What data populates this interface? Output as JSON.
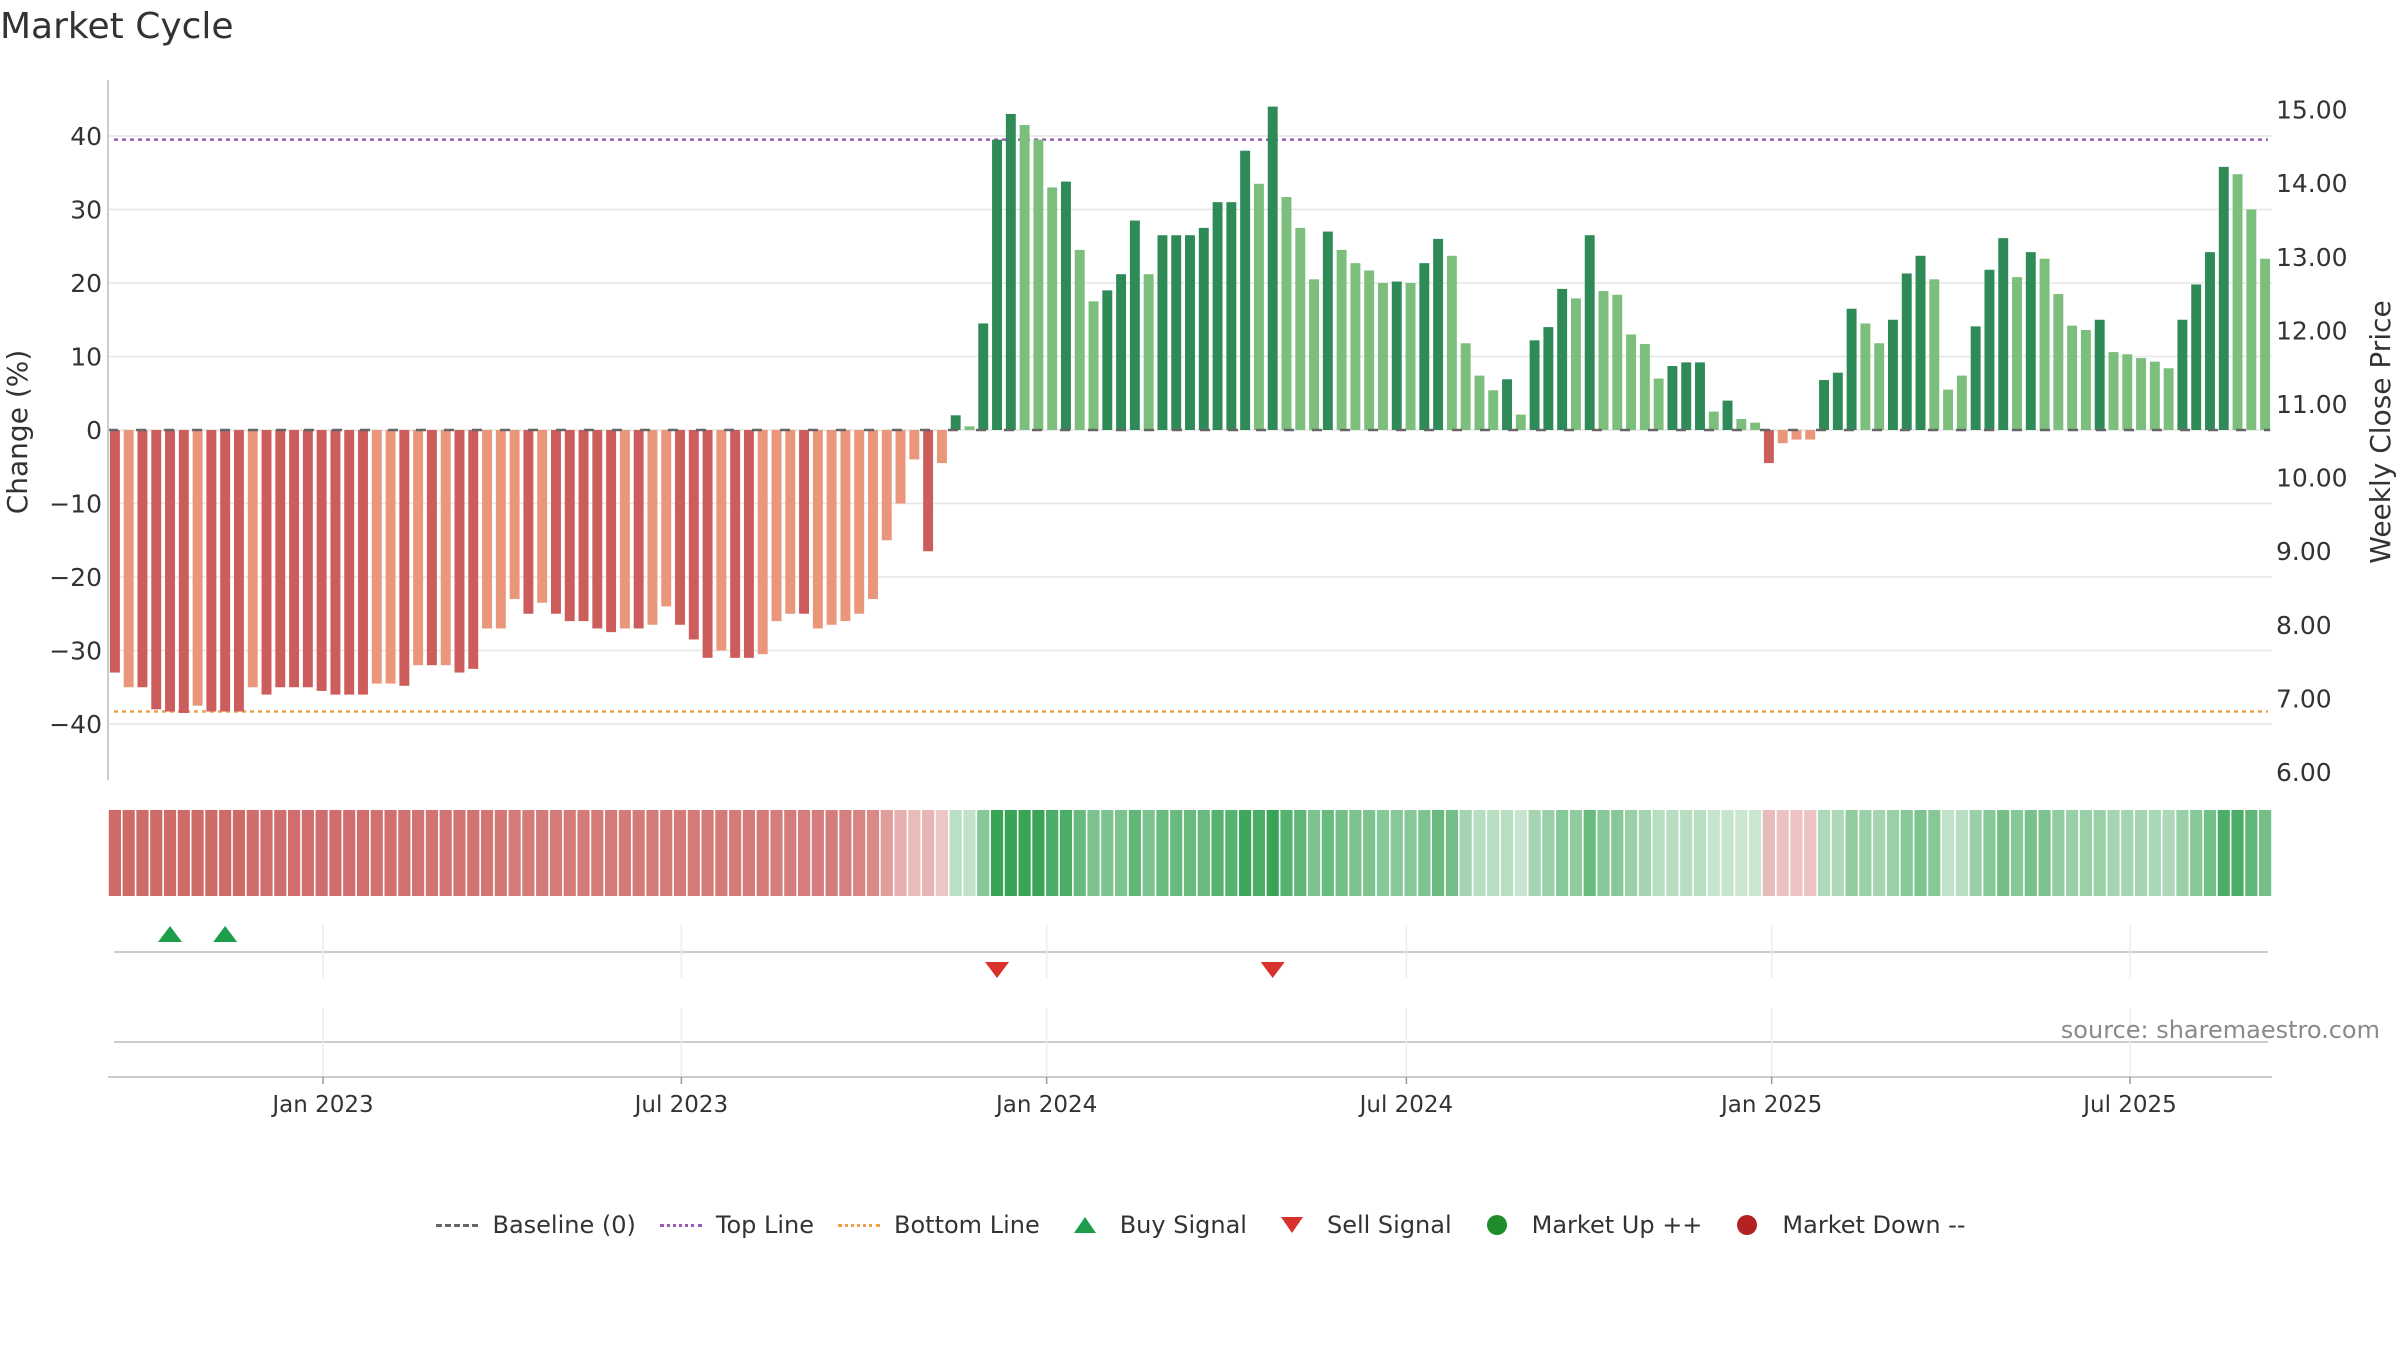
{
  "title": "Market Cycle",
  "source": "source: sharemaestro.com",
  "legend": {
    "baseline": "Baseline (0)",
    "top_line": "Top Line",
    "bottom_line": "Bottom Line",
    "buy": "Buy Signal",
    "sell": "Sell Signal",
    "up": "Market Up ++",
    "down": "Market Down --"
  },
  "colors": {
    "pos_dark": "#2e8b57",
    "pos_light": "#7cbf7c",
    "neg_dark": "#cd5c5c",
    "neg_light": "#e9967a",
    "top_line": "#9b59b6",
    "bottom_line": "#f0a04b",
    "buy": "#1e9e4a",
    "sell": "#d9312b",
    "up": "#1e8c2a",
    "down": "#b22222",
    "baseline": "#666666"
  },
  "chart_data": {
    "type": "bar",
    "title": "Market Cycle",
    "ylabel": "Change (%)",
    "y2label": "Weekly Close Price",
    "ylim": [
      -47,
      48
    ],
    "y2lim": [
      6.0,
      15.5
    ],
    "yticks": [
      "40",
      "30",
      "20",
      "10",
      "0",
      "−10",
      "−20",
      "−30",
      "−40"
    ],
    "yticks_values": [
      40,
      30,
      20,
      10,
      0,
      -10,
      -20,
      -30,
      -40
    ],
    "y2ticks": [
      "15.00",
      "14.00",
      "13.00",
      "12.00",
      "11.00",
      "10.00",
      "9.00",
      "8.00",
      "7.00",
      "6.00"
    ],
    "y2ticks_values": [
      15,
      14,
      13,
      12,
      11,
      10,
      9,
      8,
      7,
      6
    ],
    "xticks": [
      "Jan 2023",
      "Jul 2023",
      "Jan 2024",
      "Jul 2024",
      "Jan 2025",
      "Jul 2025"
    ],
    "xticks_index": [
      15.1,
      41.1,
      67.6,
      93.7,
      120.2,
      146.2
    ],
    "top_line": 39.5,
    "bottom_line": -38.3,
    "baseline": 0,
    "grid": true,
    "legend_position": "bottom-center",
    "values": [
      -33,
      -35,
      -35,
      -38,
      -38.3,
      -38.5,
      -37.5,
      -38.3,
      -38.3,
      -38.3,
      -35,
      -36,
      -35,
      -35,
      -35,
      -35.5,
      -36,
      -36,
      -36,
      -34.5,
      -34.5,
      -34.8,
      -32,
      -32,
      -32,
      -33,
      -32.5,
      -27,
      -27,
      -23,
      -25,
      -23.5,
      -25,
      -26,
      -26,
      -27,
      -27.5,
      -27,
      -27,
      -26.5,
      -24,
      -26.5,
      -28.5,
      -31,
      -30,
      -31,
      -31,
      -30.5,
      -26,
      -25,
      -25,
      -27,
      -26.5,
      -26,
      -25,
      -23,
      -15,
      -10,
      -4,
      -16.5,
      -4.5,
      2,
      0.5,
      14.5,
      39.5,
      43,
      41.5,
      39.5,
      33,
      33.8,
      24.5,
      17.5,
      19,
      21.2,
      28.5,
      21.2,
      26.5,
      26.5,
      26.5,
      27.5,
      31,
      31,
      38,
      33.5,
      44,
      31.7,
      27.5,
      20.5,
      27,
      24.5,
      22.7,
      21.7,
      20,
      20.2,
      20,
      22.7,
      26,
      23.7,
      11.8,
      7.4,
      5.4,
      6.9,
      2.1,
      12.2,
      14,
      19.2,
      17.9,
      26.5,
      18.9,
      18.4,
      13,
      11.7,
      7,
      8.7,
      9.2,
      9.2,
      2.5,
      4,
      1.5,
      1,
      -4.5,
      -1.8,
      -1.3,
      -1.3,
      6.8,
      7.8,
      16.5,
      14.5,
      11.8,
      15,
      21.3,
      23.7,
      20.5,
      5.5,
      7.4,
      14.1,
      21.8,
      26.1,
      20.8,
      24.2,
      23.3,
      18.5,
      14.2,
      13.6,
      15,
      10.6,
      10.3,
      9.8,
      9.3,
      8.4,
      15,
      19.8,
      24.2,
      35.8,
      34.8,
      30,
      23.3
    ],
    "shades": [
      "d",
      "l",
      "d",
      "d",
      "d",
      "d",
      "l",
      "d",
      "d",
      "d",
      "l",
      "d",
      "d",
      "d",
      "d",
      "d",
      "d",
      "d",
      "d",
      "l",
      "l",
      "d",
      "l",
      "d",
      "l",
      "d",
      "d",
      "l",
      "l",
      "l",
      "d",
      "l",
      "d",
      "d",
      "d",
      "d",
      "d",
      "l",
      "d",
      "l",
      "l",
      "d",
      "d",
      "d",
      "l",
      "d",
      "d",
      "l",
      "l",
      "l",
      "d",
      "l",
      "l",
      "l",
      "l",
      "l",
      "l",
      "l",
      "l",
      "d",
      "l",
      "d",
      "l",
      "d",
      "d",
      "d",
      "l",
      "l",
      "l",
      "d",
      "l",
      "l",
      "d",
      "d",
      "d",
      "l",
      "d",
      "d",
      "d",
      "d",
      "d",
      "d",
      "d",
      "l",
      "d",
      "l",
      "l",
      "l",
      "d",
      "l",
      "l",
      "l",
      "l",
      "d",
      "l",
      "d",
      "d",
      "l",
      "l",
      "l",
      "l",
      "d",
      "l",
      "d",
      "d",
      "d",
      "l",
      "d",
      "l",
      "l",
      "l",
      "l",
      "l",
      "d",
      "d",
      "d",
      "l",
      "d",
      "l",
      "l",
      "d",
      "l",
      "l",
      "l",
      "d",
      "d",
      "d",
      "l",
      "l",
      "d",
      "d",
      "d",
      "l",
      "l",
      "l",
      "d",
      "d",
      "d",
      "l",
      "d",
      "l",
      "l",
      "l",
      "l",
      "d",
      "l",
      "l",
      "l",
      "l",
      "l",
      "d",
      "d",
      "d",
      "d",
      "l",
      "l"
    ],
    "strength": [
      0.95,
      0.95,
      0.95,
      0.95,
      0.95,
      0.95,
      0.95,
      0.95,
      0.95,
      0.95,
      0.93,
      0.92,
      0.92,
      0.92,
      0.92,
      0.92,
      0.92,
      0.92,
      0.92,
      0.9,
      0.9,
      0.9,
      0.88,
      0.88,
      0.88,
      0.88,
      0.88,
      0.86,
      0.85,
      0.82,
      0.82,
      0.82,
      0.82,
      0.82,
      0.82,
      0.82,
      0.82,
      0.82,
      0.82,
      0.82,
      0.82,
      0.82,
      0.82,
      0.82,
      0.82,
      0.82,
      0.82,
      0.82,
      0.8,
      0.8,
      0.8,
      0.8,
      0.8,
      0.78,
      0.75,
      0.7,
      0.55,
      0.4,
      0.3,
      0.35,
      0.22,
      0.28,
      0.25,
      0.55,
      0.95,
      0.95,
      0.95,
      0.95,
      0.85,
      0.85,
      0.7,
      0.6,
      0.6,
      0.6,
      0.75,
      0.6,
      0.7,
      0.7,
      0.7,
      0.7,
      0.8,
      0.8,
      0.92,
      0.85,
      0.95,
      0.8,
      0.75,
      0.6,
      0.7,
      0.65,
      0.6,
      0.6,
      0.55,
      0.55,
      0.55,
      0.6,
      0.7,
      0.65,
      0.4,
      0.3,
      0.3,
      0.3,
      0.22,
      0.4,
      0.45,
      0.55,
      0.5,
      0.7,
      0.55,
      0.55,
      0.45,
      0.4,
      0.3,
      0.3,
      0.3,
      0.3,
      0.22,
      0.22,
      0.2,
      0.2,
      0.3,
      0.25,
      0.25,
      0.25,
      0.35,
      0.35,
      0.5,
      0.45,
      0.4,
      0.45,
      0.55,
      0.6,
      0.55,
      0.25,
      0.3,
      0.45,
      0.55,
      0.65,
      0.55,
      0.62,
      0.6,
      0.5,
      0.45,
      0.45,
      0.45,
      0.4,
      0.4,
      0.4,
      0.38,
      0.35,
      0.45,
      0.55,
      0.65,
      0.85,
      0.85,
      0.75,
      0.65
    ],
    "buy_signals": [
      4,
      8
    ],
    "sell_signals": [
      64,
      84
    ]
  }
}
